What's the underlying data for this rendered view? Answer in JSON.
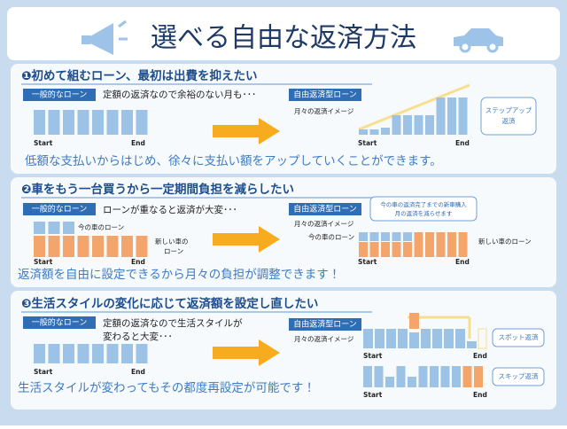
{
  "title": "選べる自由な返済方法",
  "sections": [
    {
      "heading": "❶初めて組むローン、最初は出費を抑えたい",
      "general": {
        "tag": "一般的なローン",
        "description": [
          "定額の返済なので余裕のない月も･･･"
        ],
        "start": "Start",
        "end": "End"
      },
      "free": {
        "tag": "自由返済型ローン",
        "caption": "月々の返済イメージ",
        "charts": [
          {
            "start": "Start",
            "end": "End"
          }
        ],
        "buttons": [
          [
            "ステップアップ",
            "返済"
          ]
        ]
      },
      "summary": "低額な支払いからはじめ、徐々に支払い額をアップしていくことができます。"
    },
    {
      "heading": "❷車をもう一台買うから一定期間負担を減らしたい",
      "general": {
        "tag": "一般的なローン",
        "description": [
          "ローンが重なると返済が大変･･･"
        ],
        "start": "Start",
        "end": "End",
        "current_loan": "今の車のローン",
        "new_loan": [
          "新しい車の",
          "ローン"
        ]
      },
      "free": {
        "tag": "自由返済型ローン",
        "caption": "月々の返済イメージ",
        "charts": [
          {
            "start": "Start",
            "end": "End"
          }
        ],
        "note": [
          "今の車の返済完了までの新車購入",
          "月の返済を減らせます"
        ],
        "current_loan": "今の車のローン",
        "new_loan": "新しい車のローン"
      },
      "summary": "返済額を自由に設定できるから月々の負担が調整できます！"
    },
    {
      "heading": "❸生活スタイルの変化に応じて返済額を設定し直したい",
      "general": {
        "tag": "一般的なローン",
        "description": [
          "定額の返済なので生活スタイルが",
          "変わると大変･･･"
        ],
        "start": "Start",
        "end": "End"
      },
      "free": {
        "tag": "自由返済型ローン",
        "caption": "月々の返済イメージ",
        "charts": [
          {
            "start": "Start",
            "end": "End"
          },
          {
            "start": "Start",
            "end": "End"
          }
        ],
        "buttons": [
          [
            "スポット返済"
          ],
          [
            "スキップ返済"
          ]
        ]
      },
      "summary": "生活スタイルが変わってもその都度再設定が可能です！"
    }
  ]
}
